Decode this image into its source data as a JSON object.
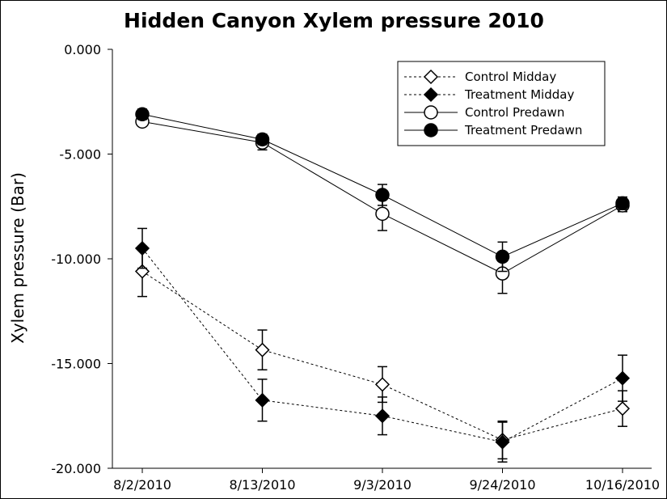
{
  "chart_data": {
    "type": "line",
    "title": "Hidden Canyon Xylem pressure 2010",
    "xlabel": "",
    "ylabel": "Xylem pressure (Bar)",
    "categories": [
      "8/2/2010",
      "8/13/2010",
      "9/3/2010",
      "9/24/2010",
      "10/16/2010"
    ],
    "ylim": [
      -20,
      0
    ],
    "yticks": [
      0,
      -5,
      -10,
      -15,
      -20
    ],
    "ytick_labels": [
      "0.000",
      "-5.000",
      "-10.000",
      "-15.000",
      "-20.000"
    ],
    "grid": false,
    "legend_position": "top-right",
    "series": [
      {
        "name": "Control Midday",
        "values": [
          -10.6,
          -14.35,
          -16.0,
          -18.65,
          -17.15
        ],
        "errors": [
          1.2,
          0.95,
          0.85,
          0.9,
          0.85
        ],
        "line_style": "dashed",
        "marker": "diamond",
        "marker_fill": "#ffffff"
      },
      {
        "name": "Treatment Midday",
        "values": [
          -9.5,
          -16.75,
          -17.5,
          -18.75,
          -15.7
        ],
        "errors": [
          0.95,
          1.0,
          0.9,
          0.95,
          1.1
        ],
        "line_style": "dashed",
        "marker": "diamond",
        "marker_fill": "#000000"
      },
      {
        "name": "Control Predawn",
        "values": [
          -3.45,
          -4.45,
          -7.85,
          -10.7,
          -7.45
        ],
        "errors": [
          0.2,
          0.35,
          0.8,
          0.95,
          0.3
        ],
        "line_style": "solid",
        "marker": "circle",
        "marker_fill": "#ffffff"
      },
      {
        "name": "Treatment Predawn",
        "values": [
          -3.1,
          -4.3,
          -6.95,
          -9.9,
          -7.35
        ],
        "errors": [
          0.25,
          0.25,
          0.5,
          0.7,
          0.3
        ],
        "line_style": "solid",
        "marker": "circle",
        "marker_fill": "#000000"
      }
    ]
  }
}
